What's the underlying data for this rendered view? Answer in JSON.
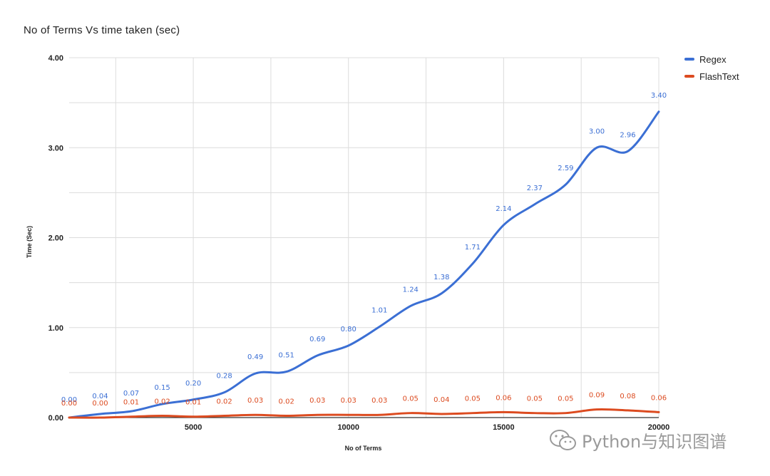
{
  "title": "No of Terms Vs time taken (sec)",
  "watermark": "Python与知识图谱",
  "chart_data": {
    "type": "line",
    "title": "No of Terms Vs time taken (sec)",
    "xlabel": "No of Terms",
    "ylabel": "Time (Sec)",
    "xlim": [
      1000,
      20000
    ],
    "ylim": [
      0,
      4
    ],
    "xticks": [
      5000,
      10000,
      15000,
      20000
    ],
    "xtick_labels": [
      "5000",
      "10000",
      "15000",
      "20000"
    ],
    "yticks": [
      0,
      1,
      2,
      3,
      4
    ],
    "ytick_labels": [
      "0.00",
      "1.00",
      "2.00",
      "3.00",
      "4.00"
    ],
    "grid": true,
    "legend_position": "top-right",
    "x": [
      1000,
      2000,
      3000,
      4000,
      5000,
      6000,
      7000,
      8000,
      9000,
      10000,
      11000,
      12000,
      13000,
      14000,
      15000,
      16000,
      17000,
      18000,
      19000,
      20000
    ],
    "series": [
      {
        "name": "Regex",
        "color": "#3b6fd4",
        "values": [
          0.0,
          0.04,
          0.07,
          0.15,
          0.2,
          0.28,
          0.49,
          0.51,
          0.69,
          0.8,
          1.01,
          1.24,
          1.38,
          1.71,
          2.14,
          2.37,
          2.59,
          3.0,
          2.96,
          3.4
        ],
        "labels": [
          "0.00",
          "0.04",
          "0.07",
          "0.15",
          "0.20",
          "0.28",
          "0.49",
          "0.51",
          "0.69",
          "0.80",
          "1.01",
          "1.24",
          "1.38",
          "1.71",
          "2.14",
          "2.37",
          "2.59",
          "3.00",
          "2.96",
          "3.40"
        ]
      },
      {
        "name": "FlashText",
        "color": "#dc4b20",
        "values": [
          0.0,
          0.0,
          0.01,
          0.02,
          0.01,
          0.02,
          0.03,
          0.02,
          0.03,
          0.03,
          0.03,
          0.05,
          0.04,
          0.05,
          0.06,
          0.05,
          0.05,
          0.09,
          0.08,
          0.06
        ],
        "labels": [
          "0.00",
          "0.00",
          "0.01",
          "0.02",
          "0.01",
          "0.02",
          "0.03",
          "0.02",
          "0.03",
          "0.03",
          "0.03",
          "0.05",
          "0.04",
          "0.05",
          "0.06",
          "0.05",
          "0.05",
          "0.09",
          "0.08",
          "0.06"
        ]
      }
    ]
  }
}
